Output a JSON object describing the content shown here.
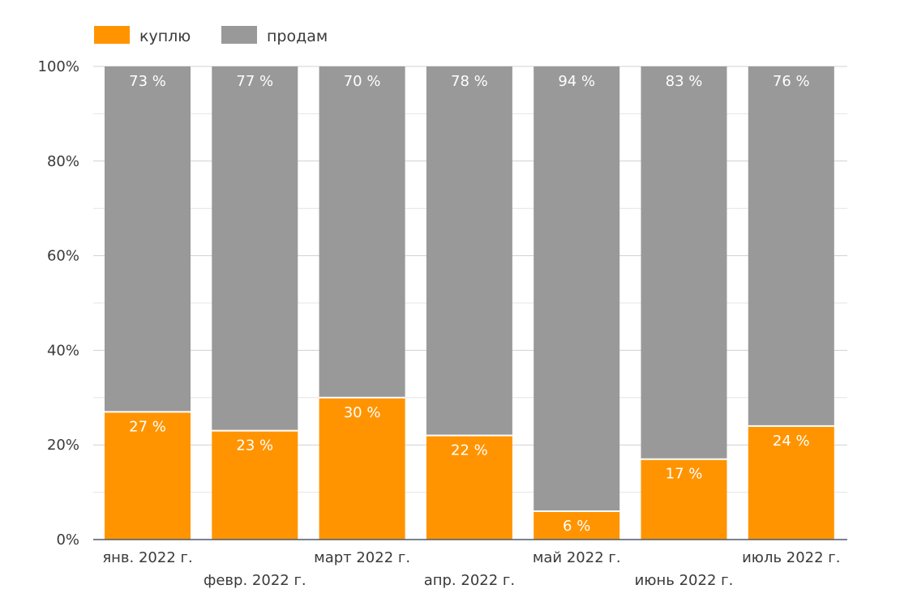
{
  "chart_data": {
    "type": "bar",
    "stacked": true,
    "percent": true,
    "categories": [
      "янв. 2022 г.",
      "февр. 2022 г.",
      "март 2022 г.",
      "апр. 2022 г.",
      "май 2022 г.",
      "июнь 2022 г.",
      "июль 2022 г."
    ],
    "series": [
      {
        "name": "куплю",
        "color": "#ff9400",
        "values": [
          27,
          23,
          30,
          22,
          6,
          17,
          24
        ],
        "labels": [
          "27 %",
          "23 %",
          "30 %",
          "22 %",
          "6 %",
          "17 %",
          "24 %"
        ]
      },
      {
        "name": "продам",
        "color": "#999999",
        "values": [
          73,
          77,
          70,
          78,
          94,
          83,
          76
        ],
        "labels": [
          "73 %",
          "77 %",
          "70 %",
          "78 %",
          "94 %",
          "83 %",
          "76 %"
        ]
      }
    ],
    "yticks": [
      {
        "value": 0,
        "label": "0%"
      },
      {
        "value": 20,
        "label": "20%"
      },
      {
        "value": 40,
        "label": "40%"
      },
      {
        "value": 60,
        "label": "60%"
      },
      {
        "value": 80,
        "label": "80%"
      },
      {
        "value": 100,
        "label": "100%"
      }
    ],
    "ylim": [
      0,
      100
    ],
    "grid": true,
    "legend_position": "top-left"
  }
}
